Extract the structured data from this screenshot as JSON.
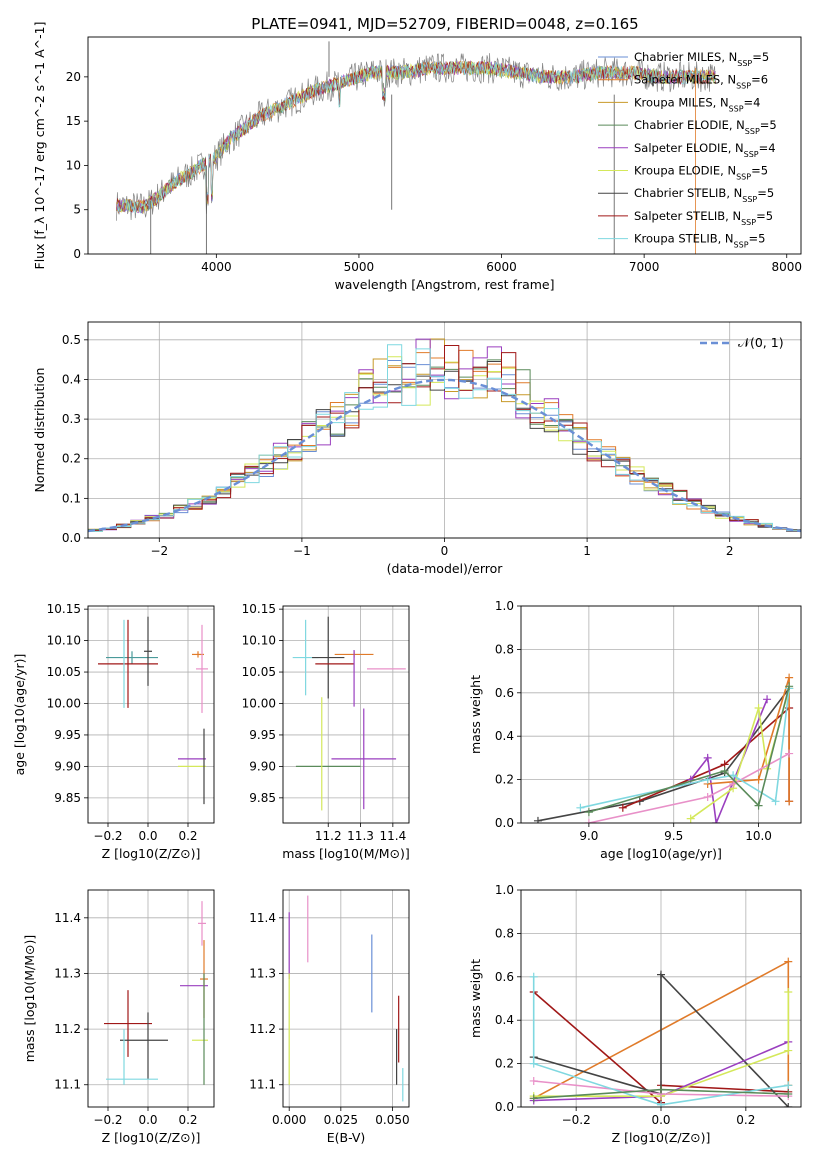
{
  "page_title": "PLATE=0941, MJD=52709, FIBERID=0048, z=0.165",
  "series_legend": [
    {
      "name": "Chabrier MILES, N_SSP=5",
      "color": "#6a8fd6"
    },
    {
      "name": "Salpeter MILES, N_SSP=6",
      "color": "#e07b2a"
    },
    {
      "name": "Kroupa MILES, N_SSP=4",
      "color": "#c89a2a"
    },
    {
      "name": "Chabrier ELODIE, N_SSP=5",
      "color": "#5a8a5a"
    },
    {
      "name": "Salpeter ELODIE, N_SSP=4",
      "color": "#9a3fbf"
    },
    {
      "name": "Kroupa ELODIE, N_SSP=5",
      "color": "#d4e85a"
    },
    {
      "name": "Chabrier STELIB, N_SSP=5",
      "color": "#444444"
    },
    {
      "name": "Salpeter STELIB, N_SSP=5",
      "color": "#a01818"
    },
    {
      "name": "Kroupa STELIB, N_SSP=5",
      "color": "#7fd8e0"
    }
  ],
  "chart_data": [
    {
      "type": "line",
      "id": "spectrum",
      "xlabel": "wavelength [Angstrom, rest frame]",
      "ylabel": "Flux [f_λ 10^-17 erg cm^-2 s^-1 A^-1]",
      "xlim": [
        3100,
        8100
      ],
      "ylim": [
        0,
        24.5
      ],
      "xticks": [
        4000,
        5000,
        6000,
        7000,
        8000
      ],
      "yticks": [
        0,
        5,
        10,
        15,
        20
      ],
      "grid": false,
      "legend": "right",
      "continuum": {
        "x": [
          3300,
          3500,
          3700,
          3900,
          4000,
          4100,
          4300,
          4500,
          4700,
          4900,
          5100,
          5300,
          5500,
          5700,
          5900,
          6100,
          6300,
          6500,
          6700,
          6900,
          7100,
          7300,
          7500
        ],
        "y": [
          5.5,
          5.3,
          8,
          10,
          11,
          13,
          15.5,
          17,
          18.5,
          19.5,
          20.5,
          20.5,
          21,
          21,
          21,
          20.5,
          20,
          20,
          20.5,
          20.5,
          20,
          20,
          20
        ]
      }
    },
    {
      "type": "histogram",
      "id": "residuals",
      "xlabel": "(data-model)/error",
      "ylabel": "Normed distribution",
      "xlim": [
        -2.5,
        2.5
      ],
      "ylim": [
        0,
        0.545
      ],
      "xticks": [
        -2,
        -1,
        0,
        1,
        2
      ],
      "yticks": [
        0.0,
        0.1,
        0.2,
        0.3,
        0.4,
        0.5
      ],
      "grid": true,
      "legend": "top-right",
      "gaussian_label": "𝒩(0, 1)",
      "gaussian_color": "#6a8fd6",
      "bin_width": 0.1
    },
    {
      "type": "scatter",
      "id": "age-vs-z",
      "xlabel": "Z [log10(Z/Z⊙)]",
      "ylabel": "age  [log10(age/yr)]",
      "xlim": [
        -0.3,
        0.33
      ],
      "ylim": [
        9.81,
        10.155
      ],
      "xticks": [
        -0.2,
        0.0,
        0.2
      ],
      "yticks": [
        9.85,
        9.9,
        9.95,
        10.0,
        10.05,
        10.1,
        10.15
      ],
      "grid": true,
      "points": [
        {
          "x": -0.08,
          "y": 10.073,
          "xerr": 0.13,
          "yerr": 0.01,
          "c": "#4a9a9a"
        },
        {
          "x": -0.1,
          "y": 10.063,
          "xerr": 0.15,
          "yerr": 0.07,
          "c": "#a01818"
        },
        {
          "x": -0.12,
          "y": 10.063,
          "xerr": 0.0,
          "yerr": 0.07,
          "c": "#7fd8e0"
        },
        {
          "x": -0.0,
          "y": 10.083,
          "xerr": 0.02,
          "yerr": 0.055,
          "c": "#444444"
        },
        {
          "x": 0.25,
          "y": 10.078,
          "xerr": 0.03,
          "yerr": 0.005,
          "c": "#e07b2a"
        },
        {
          "x": 0.27,
          "y": 10.055,
          "xerr": 0.03,
          "yerr": 0.07,
          "c": "#e890c8"
        },
        {
          "x": 0.22,
          "y": 9.912,
          "xerr": 0.07,
          "yerr": 0.0,
          "c": "#9a3fbf"
        },
        {
          "x": 0.22,
          "y": 9.9,
          "xerr": 0.07,
          "yerr": 0.0,
          "c": "#d4e85a"
        },
        {
          "x": 0.28,
          "y": 9.9,
          "xerr": 0.0,
          "yerr": 0.06,
          "c": "#444444"
        }
      ]
    },
    {
      "type": "scatter",
      "id": "age-vs-mass",
      "xlabel": "mass [log10(M/M⊙)]",
      "ylabel": "",
      "xlim": [
        11.06,
        11.45
      ],
      "ylim": [
        9.81,
        10.155
      ],
      "xticks": [
        11.2,
        11.3,
        11.4
      ],
      "yticks": [
        9.85,
        9.9,
        9.95,
        10.0,
        10.05,
        10.1,
        10.15
      ],
      "grid": true,
      "points": [
        {
          "x": 11.13,
          "y": 10.073,
          "xerr": 0.04,
          "yerr": 0.06,
          "c": "#7fd8e0"
        },
        {
          "x": 11.2,
          "y": 10.073,
          "xerr": 0.05,
          "yerr": 0.065,
          "c": "#444444"
        },
        {
          "x": 11.22,
          "y": 10.063,
          "xerr": 0.06,
          "yerr": 0.0,
          "c": "#a01818"
        },
        {
          "x": 11.28,
          "y": 10.078,
          "xerr": 0.06,
          "yerr": 0.005,
          "c": "#e07b2a"
        },
        {
          "x": 11.28,
          "y": 10.04,
          "xerr": 0.0,
          "yerr": 0.045,
          "c": "#9a3fbf"
        },
        {
          "x": 11.38,
          "y": 10.055,
          "xerr": 0.06,
          "yerr": 0.0,
          "c": "#e890c8"
        },
        {
          "x": 11.31,
          "y": 9.912,
          "xerr": 0.1,
          "yerr": 0.08,
          "c": "#9a3fbf"
        },
        {
          "x": 11.2,
          "y": 9.9,
          "xerr": 0.1,
          "yerr": 0.0,
          "c": "#5a8a5a"
        },
        {
          "x": 11.18,
          "y": 9.92,
          "xerr": 0.0,
          "yerr": 0.09,
          "c": "#d4e85a"
        }
      ]
    },
    {
      "type": "line",
      "id": "weight-vs-age",
      "xlabel": "age  [log10(age/yr)]",
      "ylabel": "mass weight",
      "xlim": [
        8.6,
        10.25
      ],
      "ylim": [
        0,
        1.0
      ],
      "xticks": [
        9.0,
        9.5,
        10.0
      ],
      "yticks": [
        0.0,
        0.2,
        0.4,
        0.6,
        0.8,
        1.0
      ],
      "grid": true,
      "series": [
        {
          "c": "#444444",
          "x": [
            8.7,
            9.3,
            9.8,
            10.18
          ],
          "y": [
            0.01,
            0.1,
            0.23,
            0.62
          ]
        },
        {
          "c": "#a01818",
          "x": [
            9.2,
            9.8,
            10.18,
            10.18
          ],
          "y": [
            0.07,
            0.27,
            0.53,
            0.1
          ]
        },
        {
          "c": "#9a3fbf",
          "x": [
            9.6,
            9.7,
            9.75,
            10.05
          ],
          "y": [
            0.2,
            0.3,
            0.0,
            0.57
          ]
        },
        {
          "c": "#e07b2a",
          "x": [
            9.7,
            10.0,
            10.18,
            10.18
          ],
          "y": [
            0.18,
            0.2,
            0.67,
            0.1
          ]
        },
        {
          "c": "#d4e85a",
          "x": [
            9.6,
            9.85,
            10.0,
            10.05,
            10.18
          ],
          "y": [
            0.02,
            0.16,
            0.53,
            0.25,
            0.62
          ]
        },
        {
          "c": "#e890c8",
          "x": [
            9.0,
            9.7,
            9.85,
            10.18
          ],
          "y": [
            0.0,
            0.12,
            0.18,
            0.32
          ]
        },
        {
          "c": "#7fd8e0",
          "x": [
            8.95,
            9.7,
            9.85,
            10.1,
            10.18
          ],
          "y": [
            0.07,
            0.2,
            0.22,
            0.1,
            0.62
          ]
        },
        {
          "c": "#5a8a5a",
          "x": [
            9.0,
            9.8,
            10.0,
            10.18
          ],
          "y": [
            0.05,
            0.24,
            0.08,
            0.63
          ]
        }
      ]
    },
    {
      "type": "scatter",
      "id": "mass-vs-z",
      "xlabel": "Z [log10(Z/Z⊙)]",
      "ylabel": "mass [log10(M/M⊙)]",
      "xlim": [
        -0.3,
        0.33
      ],
      "ylim": [
        11.06,
        11.45
      ],
      "xticks": [
        -0.2,
        0.0,
        0.2
      ],
      "yticks": [
        11.1,
        11.2,
        11.3,
        11.4
      ],
      "grid": true,
      "points": [
        {
          "x": -0.1,
          "y": 11.21,
          "xerr": 0.12,
          "yerr": 0.06,
          "c": "#a01818"
        },
        {
          "x": -0.02,
          "y": 11.18,
          "xerr": 0.12,
          "yerr": 0.0,
          "c": "#444444"
        },
        {
          "x": -0.0,
          "y": 11.17,
          "xerr": 0.0,
          "yerr": 0.06,
          "c": "#444444"
        },
        {
          "x": -0.12,
          "y": 11.15,
          "xerr": 0.0,
          "yerr": 0.05,
          "c": "#7fd8e0"
        },
        {
          "x": -0.08,
          "y": 11.11,
          "xerr": 0.13,
          "yerr": 0.0,
          "c": "#7fd8e0"
        },
        {
          "x": 0.23,
          "y": 11.278,
          "xerr": 0.07,
          "yerr": 0.0,
          "c": "#9a3fbf"
        },
        {
          "x": 0.27,
          "y": 11.39,
          "xerr": 0.02,
          "yerr": 0.04,
          "c": "#e890c8"
        },
        {
          "x": 0.28,
          "y": 11.29,
          "xerr": 0.02,
          "yerr": 0.07,
          "c": "#e07b2a"
        },
        {
          "x": 0.26,
          "y": 11.18,
          "xerr": 0.04,
          "yerr": 0.0,
          "c": "#d4e85a"
        },
        {
          "x": 0.28,
          "y": 11.2,
          "xerr": 0.0,
          "yerr": 0.1,
          "c": "#5a8a5a"
        }
      ]
    },
    {
      "type": "scatter",
      "id": "mass-vs-ebv",
      "xlabel": "E(B-V)",
      "ylabel": "",
      "xlim": [
        -0.003,
        0.058
      ],
      "ylim": [
        11.06,
        11.45
      ],
      "xticks": [
        0.0,
        0.025,
        0.05
      ],
      "yticks": [
        11.1,
        11.2,
        11.3,
        11.4
      ],
      "grid": true,
      "points": [
        {
          "x": 0.0,
          "y": 11.35,
          "xerr": 0.0,
          "yerr": 0.06,
          "c": "#9a3fbf"
        },
        {
          "x": 0.0,
          "y": 11.2,
          "xerr": 0.0,
          "yerr": 0.1,
          "c": "#d4e85a"
        },
        {
          "x": 0.009,
          "y": 11.38,
          "xerr": 0.0,
          "yerr": 0.06,
          "c": "#e890c8"
        },
        {
          "x": 0.04,
          "y": 11.3,
          "xerr": 0.0,
          "yerr": 0.07,
          "c": "#6a8fd6"
        },
        {
          "x": 0.053,
          "y": 11.2,
          "xerr": 0.0,
          "yerr": 0.06,
          "c": "#a01818"
        },
        {
          "x": 0.052,
          "y": 11.15,
          "xerr": 0.0,
          "yerr": 0.05,
          "c": "#444444"
        },
        {
          "x": 0.055,
          "y": 11.1,
          "xerr": 0.0,
          "yerr": 0.03,
          "c": "#7fd8e0"
        }
      ]
    },
    {
      "type": "line",
      "id": "weight-vs-z",
      "xlabel": "Z [log10(Z/Z⊙)]",
      "ylabel": "mass weight",
      "xlim": [
        -0.33,
        0.33
      ],
      "ylim": [
        0,
        1.0
      ],
      "xticks": [
        -0.2,
        0.0,
        0.2
      ],
      "yticks": [
        0.0,
        0.2,
        0.4,
        0.6,
        0.8,
        1.0
      ],
      "grid": true,
      "series": [
        {
          "c": "#e07b2a",
          "x": [
            -0.3,
            0.3,
            0.3
          ],
          "y": [
            0.04,
            0.67,
            0.1
          ]
        },
        {
          "c": "#a01818",
          "x": [
            -0.3,
            0.0,
            0.0,
            0.3
          ],
          "y": [
            0.53,
            0.02,
            0.1,
            0.07
          ]
        },
        {
          "c": "#444444",
          "x": [
            -0.3,
            0.0,
            0.0,
            0.3
          ],
          "y": [
            0.23,
            0.06,
            0.61,
            0.0
          ]
        },
        {
          "c": "#9a3fbf",
          "x": [
            -0.3,
            0.0,
            0.3
          ],
          "y": [
            0.03,
            0.05,
            0.3
          ]
        },
        {
          "c": "#d4e85a",
          "x": [
            -0.3,
            0.0,
            0.3,
            0.3
          ],
          "y": [
            0.05,
            0.05,
            0.26,
            0.53
          ]
        },
        {
          "c": "#e890c8",
          "x": [
            -0.3,
            0.0,
            0.3
          ],
          "y": [
            0.12,
            0.06,
            0.05
          ]
        },
        {
          "c": "#7fd8e0",
          "x": [
            -0.3,
            -0.3,
            0.0,
            0.3
          ],
          "y": [
            0.6,
            0.2,
            0.01,
            0.1
          ]
        },
        {
          "c": "#5a8a5a",
          "x": [
            -0.3,
            0.0,
            0.3
          ],
          "y": [
            0.04,
            0.08,
            0.06
          ]
        }
      ]
    }
  ]
}
